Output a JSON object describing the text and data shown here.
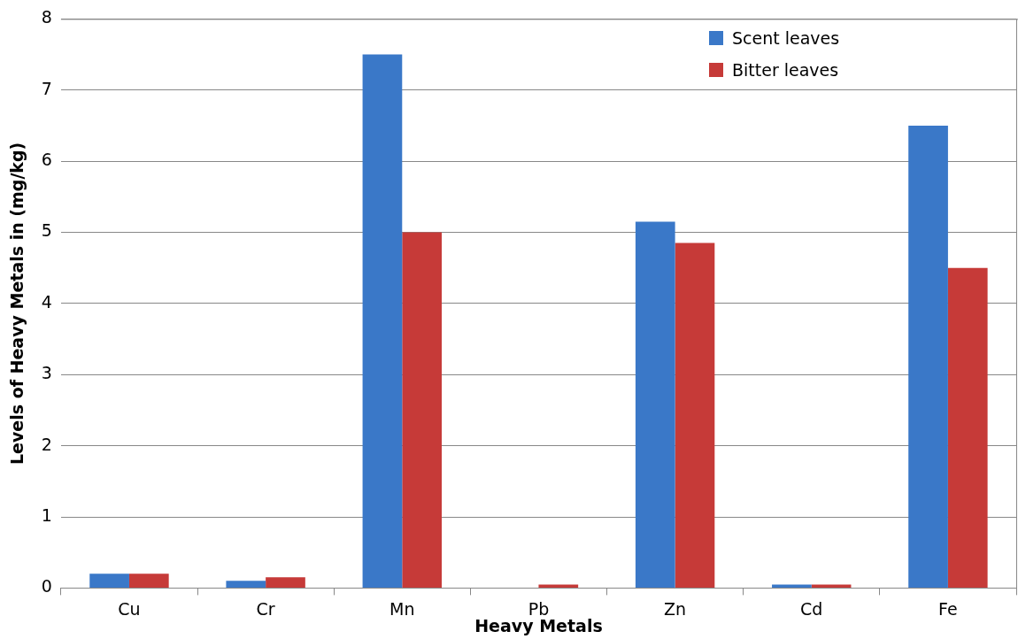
{
  "chart_data": {
    "type": "bar",
    "xlabel": "Heavy Metals",
    "ylabel": "Levels of Heavy Metals in (mg/kg)",
    "categories": [
      "Cu",
      "Cr",
      "Mn",
      "Pb",
      "Zn",
      "Cd",
      "Fe"
    ],
    "series": [
      {
        "name": "Scent leaves",
        "color": "#3a78c8",
        "values": [
          0.2,
          0.1,
          7.5,
          0,
          5.15,
          0.05,
          6.5
        ]
      },
      {
        "name": "Bitter leaves",
        "color": "#c63a38",
        "values": [
          0.2,
          0.15,
          5.0,
          0.05,
          4.85,
          0.05,
          4.5
        ]
      }
    ],
    "ylim": [
      0,
      8
    ],
    "yticks": [
      0,
      1,
      2,
      3,
      4,
      5,
      6,
      7,
      8
    ],
    "grid": "y",
    "legend": "top right"
  }
}
